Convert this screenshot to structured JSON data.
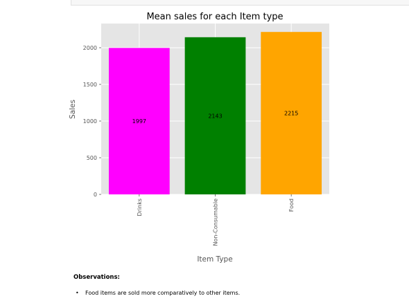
{
  "chart_data": {
    "type": "bar",
    "title": "Mean sales for each Item type",
    "xlabel": "Item Type",
    "ylabel": "Sales",
    "categories": [
      "Drinks",
      "Non-Consumable",
      "Food"
    ],
    "values": [
      1997,
      2143,
      2215
    ],
    "data_labels": [
      "1997",
      "2143",
      "2215"
    ],
    "colors": [
      "#ff00ff",
      "#008000",
      "#ffa500"
    ],
    "yticks": [
      0,
      500,
      1000,
      1500,
      2000
    ],
    "ylim": [
      0,
      2330
    ],
    "grid": true,
    "background": "#e5e5e5"
  },
  "observations": {
    "heading": "Observations:",
    "items": [
      "Food items are sold more comparatively to other items."
    ]
  }
}
